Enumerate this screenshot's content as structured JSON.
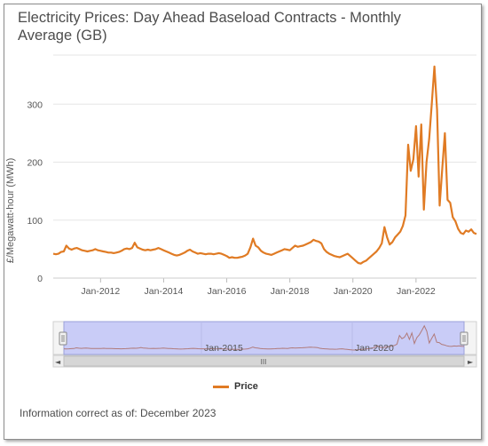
{
  "title": "Electricity Prices: Day Ahead Baseload Contracts - Monthly Average (GB)",
  "footer": "Information correct as of: December 2023",
  "colors": {
    "series": "#E07B24",
    "navigator_fill": "#c8c9f5",
    "navigator_line": "#b07a7a",
    "grid": "#e6e6e6"
  },
  "chart_data": {
    "type": "line",
    "ylabel": "£/Megawatt-hour (MWh)",
    "xlim": [
      "2010-07",
      "2023-12"
    ],
    "ylim": [
      0,
      400
    ],
    "yticks": [
      0,
      100,
      200,
      300
    ],
    "xticks": [
      "Jan-2012",
      "Jan-2014",
      "Jan-2016",
      "Jan-2018",
      "Jan-2020",
      "Jan-2022"
    ],
    "grid": true,
    "legend": "bottom",
    "series": [
      {
        "name": "Price",
        "points": [
          [
            "2010-07",
            42
          ],
          [
            "2010-08",
            41
          ],
          [
            "2010-09",
            42
          ],
          [
            "2010-10",
            45
          ],
          [
            "2010-11",
            46
          ],
          [
            "2010-12",
            56
          ],
          [
            "2011-01",
            51
          ],
          [
            "2011-02",
            49
          ],
          [
            "2011-03",
            51
          ],
          [
            "2011-04",
            52
          ],
          [
            "2011-05",
            50
          ],
          [
            "2011-06",
            48
          ],
          [
            "2011-07",
            47
          ],
          [
            "2011-08",
            46
          ],
          [
            "2011-09",
            47
          ],
          [
            "2011-10",
            48
          ],
          [
            "2011-11",
            50
          ],
          [
            "2011-12",
            48
          ],
          [
            "2012-01",
            47
          ],
          [
            "2012-02",
            46
          ],
          [
            "2012-03",
            45
          ],
          [
            "2012-04",
            44
          ],
          [
            "2012-05",
            44
          ],
          [
            "2012-06",
            43
          ],
          [
            "2012-07",
            44
          ],
          [
            "2012-08",
            45
          ],
          [
            "2012-09",
            47
          ],
          [
            "2012-10",
            50
          ],
          [
            "2012-11",
            51
          ],
          [
            "2012-12",
            50
          ],
          [
            "2013-01",
            52
          ],
          [
            "2013-02",
            61
          ],
          [
            "2013-03",
            53
          ],
          [
            "2013-04",
            51
          ],
          [
            "2013-05",
            49
          ],
          [
            "2013-06",
            48
          ],
          [
            "2013-07",
            49
          ],
          [
            "2013-08",
            48
          ],
          [
            "2013-09",
            49
          ],
          [
            "2013-10",
            50
          ],
          [
            "2013-11",
            52
          ],
          [
            "2013-12",
            50
          ],
          [
            "2014-01",
            48
          ],
          [
            "2014-02",
            46
          ],
          [
            "2014-03",
            44
          ],
          [
            "2014-04",
            42
          ],
          [
            "2014-05",
            40
          ],
          [
            "2014-06",
            39
          ],
          [
            "2014-07",
            40
          ],
          [
            "2014-08",
            42
          ],
          [
            "2014-09",
            44
          ],
          [
            "2014-10",
            47
          ],
          [
            "2014-11",
            49
          ],
          [
            "2014-12",
            46
          ],
          [
            "2015-01",
            44
          ],
          [
            "2015-02",
            42
          ],
          [
            "2015-03",
            43
          ],
          [
            "2015-04",
            42
          ],
          [
            "2015-05",
            41
          ],
          [
            "2015-06",
            42
          ],
          [
            "2015-07",
            42
          ],
          [
            "2015-08",
            41
          ],
          [
            "2015-09",
            42
          ],
          [
            "2015-10",
            43
          ],
          [
            "2015-11",
            42
          ],
          [
            "2015-12",
            40
          ],
          [
            "2016-01",
            38
          ],
          [
            "2016-02",
            35
          ],
          [
            "2016-03",
            36
          ],
          [
            "2016-04",
            35
          ],
          [
            "2016-05",
            35
          ],
          [
            "2016-06",
            36
          ],
          [
            "2016-07",
            37
          ],
          [
            "2016-08",
            39
          ],
          [
            "2016-09",
            42
          ],
          [
            "2016-10",
            53
          ],
          [
            "2016-11",
            68
          ],
          [
            "2016-12",
            56
          ],
          [
            "2017-01",
            53
          ],
          [
            "2017-02",
            47
          ],
          [
            "2017-03",
            44
          ],
          [
            "2017-04",
            42
          ],
          [
            "2017-05",
            41
          ],
          [
            "2017-06",
            40
          ],
          [
            "2017-07",
            42
          ],
          [
            "2017-08",
            44
          ],
          [
            "2017-09",
            46
          ],
          [
            "2017-10",
            48
          ],
          [
            "2017-11",
            50
          ],
          [
            "2017-12",
            49
          ],
          [
            "2018-01",
            48
          ],
          [
            "2018-02",
            52
          ],
          [
            "2018-03",
            56
          ],
          [
            "2018-04",
            54
          ],
          [
            "2018-05",
            55
          ],
          [
            "2018-06",
            56
          ],
          [
            "2018-07",
            58
          ],
          [
            "2018-08",
            60
          ],
          [
            "2018-09",
            62
          ],
          [
            "2018-10",
            66
          ],
          [
            "2018-11",
            64
          ],
          [
            "2018-12",
            63
          ],
          [
            "2019-01",
            60
          ],
          [
            "2019-02",
            50
          ],
          [
            "2019-03",
            45
          ],
          [
            "2019-04",
            42
          ],
          [
            "2019-05",
            40
          ],
          [
            "2019-06",
            38
          ],
          [
            "2019-07",
            37
          ],
          [
            "2019-08",
            36
          ],
          [
            "2019-09",
            38
          ],
          [
            "2019-10",
            40
          ],
          [
            "2019-11",
            42
          ],
          [
            "2019-12",
            38
          ],
          [
            "2020-01",
            34
          ],
          [
            "2020-02",
            30
          ],
          [
            "2020-03",
            26
          ],
          [
            "2020-04",
            25
          ],
          [
            "2020-05",
            28
          ],
          [
            "2020-06",
            30
          ],
          [
            "2020-07",
            34
          ],
          [
            "2020-08",
            38
          ],
          [
            "2020-09",
            42
          ],
          [
            "2020-10",
            46
          ],
          [
            "2020-11",
            52
          ],
          [
            "2020-12",
            60
          ],
          [
            "2021-01",
            88
          ],
          [
            "2021-02",
            70
          ],
          [
            "2021-03",
            58
          ],
          [
            "2021-04",
            62
          ],
          [
            "2021-05",
            70
          ],
          [
            "2021-06",
            75
          ],
          [
            "2021-07",
            80
          ],
          [
            "2021-08",
            90
          ],
          [
            "2021-09",
            108
          ],
          [
            "2021-10",
            230
          ],
          [
            "2021-11",
            185
          ],
          [
            "2021-12",
            205
          ],
          [
            "2022-01",
            262
          ],
          [
            "2022-02",
            175
          ],
          [
            "2022-03",
            265
          ],
          [
            "2022-04",
            118
          ],
          [
            "2022-05",
            200
          ],
          [
            "2022-06",
            240
          ],
          [
            "2022-07",
            300
          ],
          [
            "2022-08",
            365
          ],
          [
            "2022-09",
            290
          ],
          [
            "2022-10",
            125
          ],
          [
            "2022-11",
            190
          ],
          [
            "2022-12",
            250
          ],
          [
            "2023-01",
            135
          ],
          [
            "2023-02",
            130
          ],
          [
            "2023-03",
            105
          ],
          [
            "2023-04",
            98
          ],
          [
            "2023-05",
            85
          ],
          [
            "2023-06",
            78
          ],
          [
            "2023-07",
            76
          ],
          [
            "2023-08",
            82
          ],
          [
            "2023-09",
            80
          ],
          [
            "2023-10",
            84
          ],
          [
            "2023-11",
            78
          ],
          [
            "2023-12",
            76
          ]
        ]
      }
    ],
    "navigator": {
      "labels": [
        "Jan-2015",
        "Jan-2020"
      ],
      "handle_glyph": "III",
      "left_arrow": "◄",
      "right_arrow": "►"
    }
  }
}
